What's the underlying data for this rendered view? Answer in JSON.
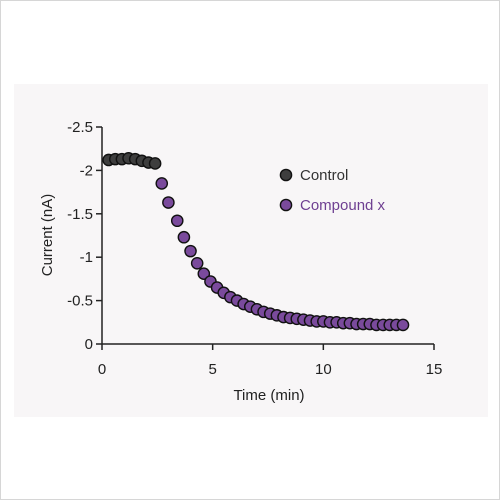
{
  "chart_data": {
    "type": "scatter",
    "xlabel": "Time (min)",
    "ylabel": "Current (nA)",
    "xlim": [
      0,
      15
    ],
    "ylim": [
      0,
      -2.5
    ],
    "y_axis_inverted": true,
    "grid": false,
    "legend_position": "top-right",
    "x_ticks": [
      0,
      5,
      10,
      15
    ],
    "x_tick_labels": [
      "0",
      "5",
      "10",
      "15"
    ],
    "y_ticks": [
      0,
      -0.5,
      -1,
      -1.5,
      -2,
      -2.5
    ],
    "y_tick_labels": [
      "0",
      "-0.5",
      "-1",
      "-1.5",
      "-2",
      "-2.5"
    ],
    "series": [
      {
        "name": "Control",
        "color": "#3e3e3e",
        "label_color": "#333333",
        "x": [
          0.3,
          0.6,
          0.9,
          1.2,
          1.5,
          1.8,
          2.1,
          2.4
        ],
        "y": [
          -2.12,
          -2.13,
          -2.13,
          -2.14,
          -2.13,
          -2.11,
          -2.09,
          -2.08
        ]
      },
      {
        "name": "Compound x",
        "color": "#7a4a9c",
        "label_color": "#6e3f91",
        "x": [
          2.7,
          3.0,
          3.4,
          3.7,
          4.0,
          4.3,
          4.6,
          4.9,
          5.2,
          5.5,
          5.8,
          6.1,
          6.4,
          6.7,
          7.0,
          7.3,
          7.6,
          7.9,
          8.2,
          8.5,
          8.8,
          9.1,
          9.4,
          9.7,
          10.0,
          10.3,
          10.6,
          10.9,
          11.2,
          11.5,
          11.8,
          12.1,
          12.4,
          12.7,
          13.0,
          13.3,
          13.6
        ],
        "y": [
          -1.85,
          -1.63,
          -1.42,
          -1.23,
          -1.07,
          -0.93,
          -0.81,
          -0.72,
          -0.65,
          -0.59,
          -0.54,
          -0.5,
          -0.46,
          -0.43,
          -0.4,
          -0.37,
          -0.35,
          -0.33,
          -0.31,
          -0.3,
          -0.29,
          -0.28,
          -0.27,
          -0.26,
          -0.26,
          -0.25,
          -0.25,
          -0.24,
          -0.24,
          -0.23,
          -0.23,
          -0.23,
          -0.22,
          -0.22,
          -0.22,
          -0.22,
          -0.22
        ]
      }
    ]
  }
}
